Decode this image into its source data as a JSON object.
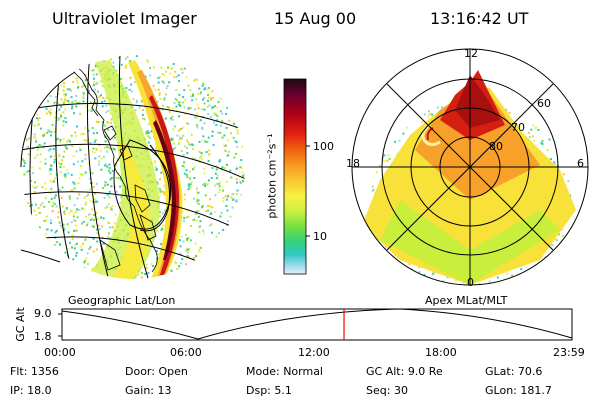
{
  "header": {
    "instrument": "Ultraviolet Imager",
    "date": "15 Aug 00",
    "time": "13:16:42 UT"
  },
  "left_panel": {
    "caption": "Geographic Lat/Lon"
  },
  "right_panel": {
    "caption": "Apex MLat/MLT",
    "mlt_labels": [
      "12",
      "18",
      "6",
      "0"
    ],
    "lat_labels": [
      "60",
      "70",
      "80"
    ]
  },
  "colorbar": {
    "unit_label": "photon cm⁻²s⁻¹",
    "scale": "log",
    "ticks": [
      "100",
      "10"
    ],
    "colors": [
      "#1a0a14",
      "#6a0030",
      "#b00018",
      "#e02010",
      "#f06010",
      "#f89820",
      "#f8c830",
      "#f8f040",
      "#c8f040",
      "#70e040",
      "#30d080",
      "#30c8c8",
      "#90d8e8",
      "#e8f0f8"
    ]
  },
  "timeline": {
    "ylabel": "GC Alt",
    "y_ticks": [
      "9.0",
      "1.8"
    ],
    "x_ticks": [
      "00:00",
      "06:00",
      "12:00",
      "18:00",
      "23:59"
    ],
    "current_time_fraction": 0.553,
    "line_color": "#ff0000"
  },
  "info": {
    "row1": [
      {
        "label": "Flt:",
        "value": "1356"
      },
      {
        "label": "Door:",
        "value": "Open"
      },
      {
        "label": "Mode:",
        "value": "Normal"
      },
      {
        "label": "GC Alt:",
        "value": "9.0 Re"
      },
      {
        "label": "GLat:",
        "value": "70.6"
      }
    ],
    "row2": [
      {
        "label": "IP:",
        "value": "18.0"
      },
      {
        "label": "Gain:",
        "value": "13"
      },
      {
        "label": "Dsp:",
        "value": "5.1"
      },
      {
        "label": "Seq:",
        "value": "30"
      },
      {
        "label": "GLon:",
        "value": "181.7"
      }
    ]
  }
}
